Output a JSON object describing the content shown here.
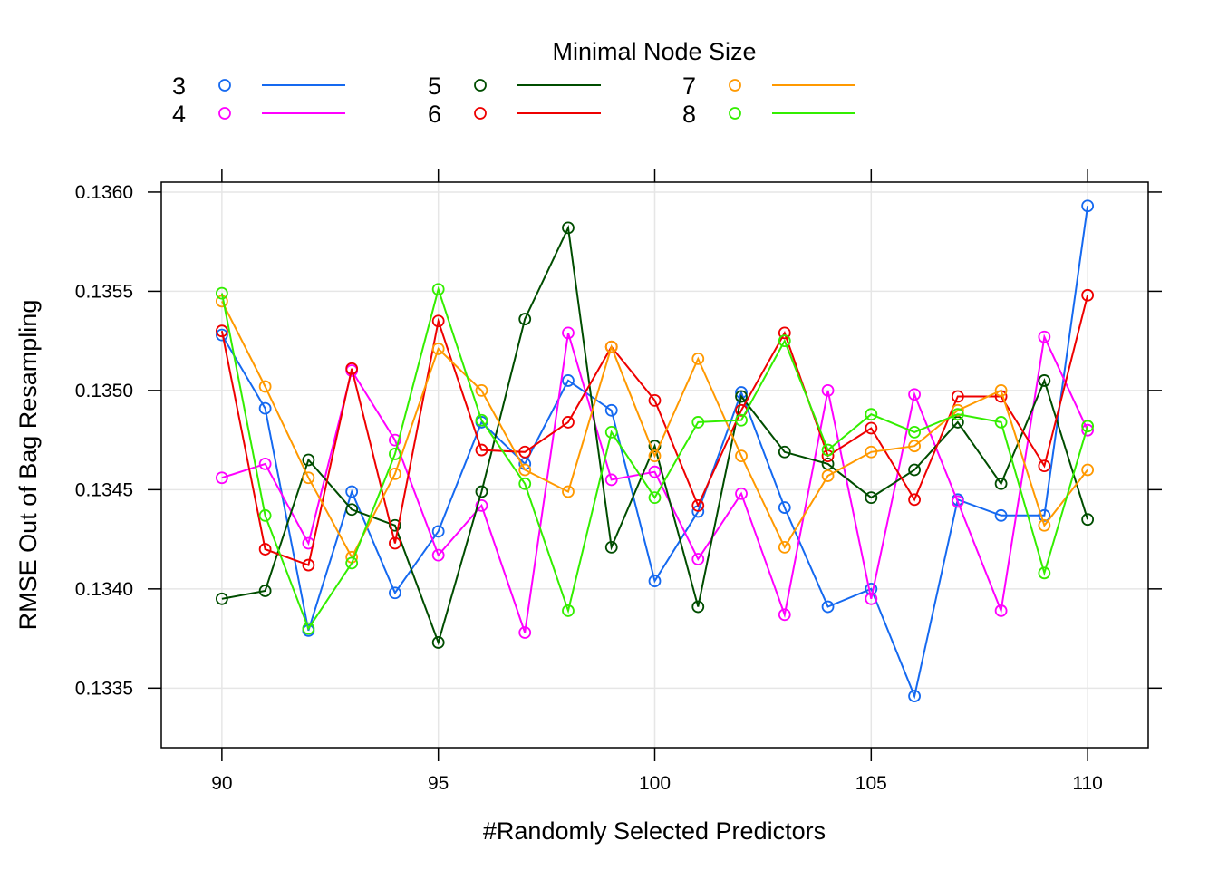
{
  "chart_data": {
    "type": "line",
    "title": "",
    "xlabel": "#Randomly Selected Predictors",
    "ylabel": "RMSE Out of Bag Resampling",
    "legend": {
      "title": "Minimal Node Size",
      "placement": "top"
    },
    "grid": true,
    "x": [
      90,
      91,
      92,
      93,
      94,
      95,
      96,
      97,
      98,
      99,
      100,
      101,
      102,
      103,
      104,
      105,
      106,
      107,
      108,
      109,
      110
    ],
    "xlim": [
      88.6,
      111.4
    ],
    "ylim": [
      0.1332,
      0.13605
    ],
    "x_ticks": [
      "90",
      "95",
      "100",
      "105",
      "110"
    ],
    "x_tick_values": [
      90,
      95,
      100,
      105,
      110
    ],
    "y_ticks": [
      "0.1335",
      "0.1340",
      "0.1345",
      "0.1350",
      "0.1355",
      "0.1360"
    ],
    "y_tick_values": [
      0.1335,
      0.134,
      0.1345,
      0.135,
      0.1355,
      0.136
    ],
    "series": [
      {
        "name": "3",
        "color": "#1569f0",
        "values": [
          0.13528,
          0.13491,
          0.13379,
          0.13449,
          0.13398,
          0.13429,
          0.13484,
          0.13463,
          0.13505,
          0.1349,
          0.13404,
          0.13439,
          0.13499,
          0.13441,
          0.13391,
          0.134,
          0.13346,
          0.13445,
          0.13437,
          0.13437,
          0.13593
        ]
      },
      {
        "name": "4",
        "color": "#ff00ff",
        "values": [
          0.13456,
          0.13463,
          0.13423,
          0.1351,
          0.13475,
          0.13417,
          0.13442,
          0.13378,
          0.13529,
          0.13455,
          0.13459,
          0.13415,
          0.13448,
          0.13387,
          0.135,
          0.13395,
          0.13498,
          0.13444,
          0.13389,
          0.13527,
          0.1348
        ]
      },
      {
        "name": "5",
        "color": "#004d00",
        "values": [
          0.13395,
          0.13399,
          0.13465,
          0.1344,
          0.13432,
          0.13373,
          0.13449,
          0.13536,
          0.13582,
          0.13421,
          0.13472,
          0.13391,
          0.13497,
          0.13469,
          0.13463,
          0.13446,
          0.1346,
          0.13484,
          0.13453,
          0.13505,
          0.13435
        ]
      },
      {
        "name": "6",
        "color": "#ee0000",
        "values": [
          0.1353,
          0.1342,
          0.13412,
          0.13511,
          0.13423,
          0.13535,
          0.1347,
          0.13469,
          0.13484,
          0.13522,
          0.13495,
          0.13442,
          0.1349,
          0.13529,
          0.13467,
          0.13481,
          0.13445,
          0.13497,
          0.13497,
          0.13462,
          0.13548
        ]
      },
      {
        "name": "7",
        "color": "#ff9900",
        "values": [
          0.13545,
          0.13502,
          0.13456,
          0.13416,
          0.13458,
          0.13521,
          0.135,
          0.1346,
          0.13449,
          0.13522,
          0.13467,
          0.13516,
          0.13467,
          0.13421,
          0.13457,
          0.13469,
          0.13472,
          0.1349,
          0.135,
          0.13432,
          0.1346
        ]
      },
      {
        "name": "8",
        "color": "#33ee00",
        "values": [
          0.13549,
          0.13437,
          0.1338,
          0.13413,
          0.13468,
          0.13551,
          0.13485,
          0.13453,
          0.13389,
          0.13479,
          0.13446,
          0.13484,
          0.13485,
          0.13525,
          0.1347,
          0.13488,
          0.13479,
          0.13488,
          0.13484,
          0.13408,
          0.13482
        ]
      }
    ]
  }
}
